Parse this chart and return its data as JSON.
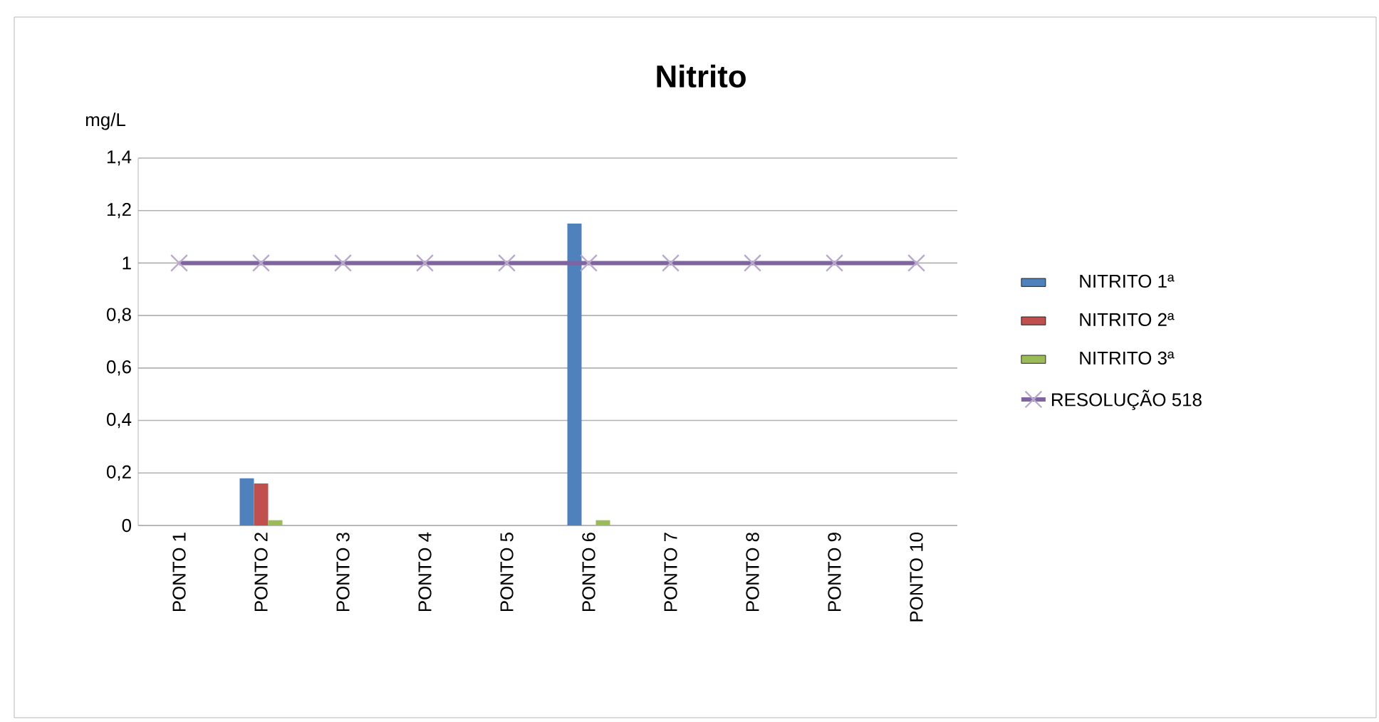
{
  "chart_data": {
    "type": "bar",
    "title": "Nitrito",
    "ylabel": "mg/L",
    "categories": [
      "PONTO 1",
      "PONTO 2",
      "PONTO 3",
      "PONTO 4",
      "PONTO 5",
      "PONTO 6",
      "PONTO 7",
      "PONTO 8",
      "PONTO 9",
      "PONTO 10"
    ],
    "series": [
      {
        "name": "NITRITO 1ª",
        "color": "#4f81bd",
        "values": [
          0,
          0.18,
          0,
          0,
          0,
          1.15,
          0,
          0,
          0,
          0
        ]
      },
      {
        "name": "NITRITO 2ª",
        "color": "#c0504d",
        "values": [
          0,
          0.16,
          0,
          0,
          0,
          0,
          0,
          0,
          0,
          0
        ]
      },
      {
        "name": "NITRITO 3ª",
        "color": "#9bbb59",
        "values": [
          0,
          0.02,
          0,
          0,
          0,
          0.02,
          0,
          0,
          0,
          0
        ]
      },
      {
        "name": "RESOLUÇÃO 518",
        "type": "line",
        "color": "#8064a2",
        "marker": "cross",
        "values": [
          1,
          1,
          1,
          1,
          1,
          1,
          1,
          1,
          1,
          1
        ]
      }
    ],
    "ylim": [
      0,
      1.4
    ],
    "yticks": [
      0,
      {
        "value": 0.2,
        "label": "0,2"
      },
      {
        "value": 0.4,
        "label": "0,4"
      },
      {
        "value": 0.6,
        "label": "0,6"
      },
      {
        "value": 0.8,
        "label": "0,8"
      },
      1,
      {
        "value": 1.2,
        "label": "1,2"
      },
      {
        "value": 1.4,
        "label": "1,4"
      }
    ],
    "grid": "y",
    "legend": "right"
  }
}
